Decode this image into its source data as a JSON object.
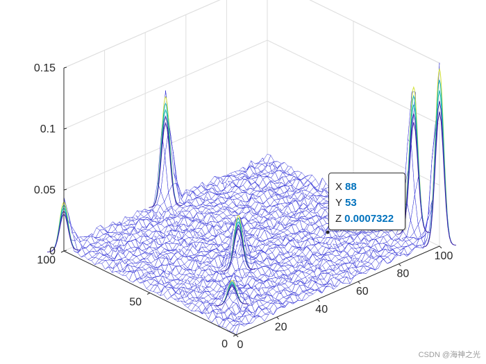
{
  "chart_data": {
    "type": "surface",
    "plot_style": "3-D mesh plot (wire-frame surface, parula-coloured peaks)",
    "x": {
      "ticks": [
        0,
        20,
        40,
        60,
        80,
        100
      ],
      "range": [
        0,
        100
      ]
    },
    "y": {
      "ticks": [
        0,
        50,
        100
      ],
      "range": [
        0,
        100
      ]
    },
    "z": {
      "ticks": [
        "0",
        "0.05",
        "0.1",
        "0.15"
      ],
      "range": [
        0,
        0.15
      ]
    },
    "grid": true,
    "colormap": "parula",
    "colors": {
      "mesh": "#2a2ad6",
      "low": "#3e26a8",
      "mid": "#19b7b2",
      "high": "#d4e33a",
      "datatip_value": "#0072bd"
    },
    "peaks": [
      {
        "x": 100,
        "y": 0,
        "z": 0.145
      },
      {
        "x": 100,
        "y": 15,
        "z": 0.12
      },
      {
        "x": 50,
        "y": 100,
        "z": 0.09
      },
      {
        "x": 0,
        "y": 100,
        "z": 0.04
      },
      {
        "x": 35,
        "y": 40,
        "z": 0.045
      },
      {
        "x": 15,
        "y": 20,
        "z": 0.02
      }
    ],
    "datatip": {
      "x_label": "X",
      "x_value": "88",
      "y_label": "Y",
      "y_value": "53",
      "z_label": "Z",
      "z_value": "0.0007322"
    }
  },
  "watermark": "CSDN @海神之光"
}
